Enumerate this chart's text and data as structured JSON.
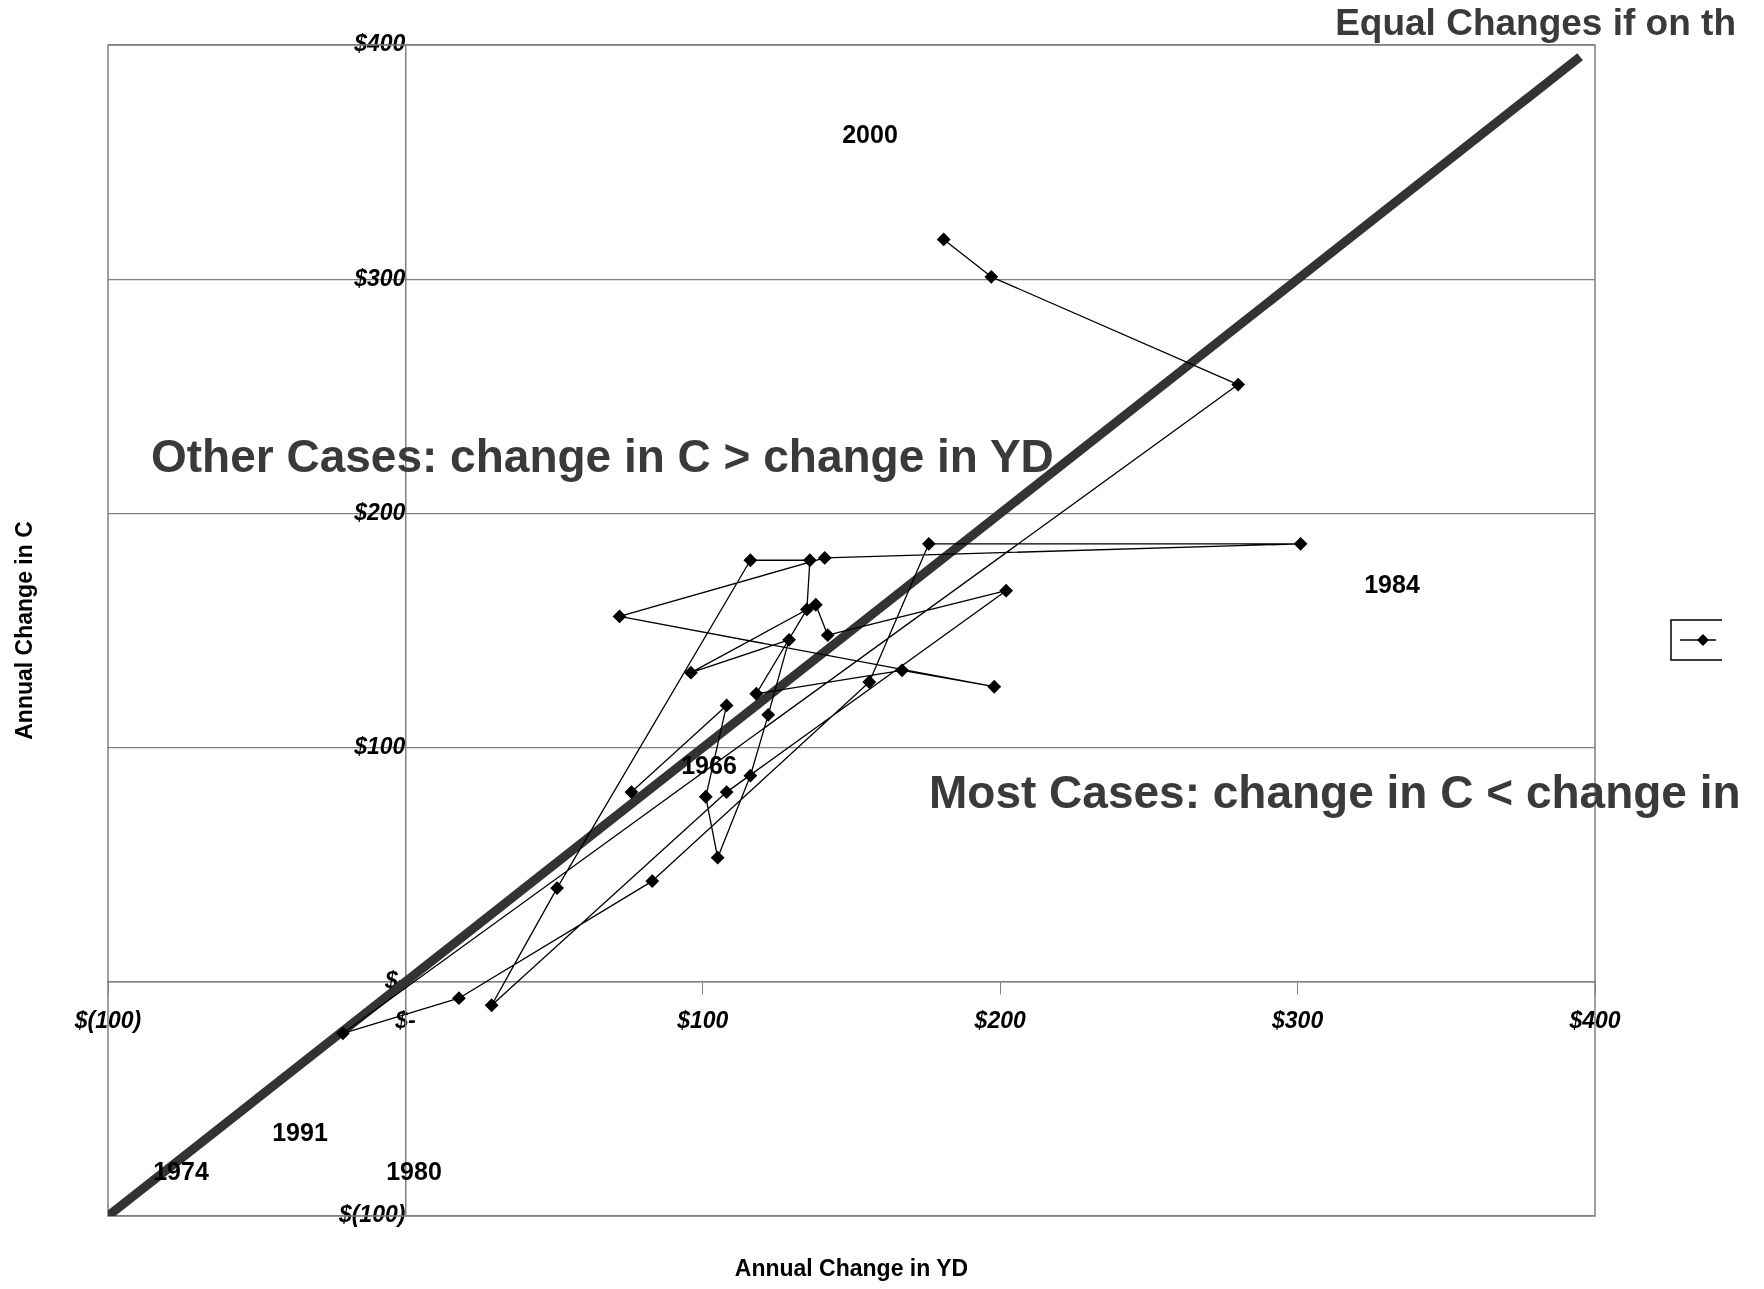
{
  "chart_data": {
    "type": "line",
    "title": "Equal Changes if on th",
    "xlabel": "Annual Change in YD",
    "ylabel": "Annual Change in C",
    "xlim": [
      -100,
      400
    ],
    "ylim": [
      -100,
      400
    ],
    "xticks": [
      {
        "value": -100,
        "label": "$(100)"
      },
      {
        "value": 0,
        "label": "$-"
      },
      {
        "value": 100,
        "label": "$100"
      },
      {
        "value": 200,
        "label": "$200"
      },
      {
        "value": 300,
        "label": "$300"
      },
      {
        "value": 400,
        "label": "$400"
      }
    ],
    "yticks": [
      {
        "value": -100,
        "label": "$(100)"
      },
      {
        "value": 0,
        "label": "$-"
      },
      {
        "value": 100,
        "label": "$100"
      },
      {
        "value": 200,
        "label": "$200"
      },
      {
        "value": 300,
        "label": "$300"
      },
      {
        "value": 400,
        "label": "$400"
      }
    ],
    "grid": "y",
    "marker": "diamond",
    "line_style": "solid",
    "series": [
      {
        "color": "#000000",
        "x": [
          76,
          108,
          101,
          105,
          116,
          122,
          129,
          96,
          138,
          142,
          202,
          108,
          29,
          51,
          116,
          136,
          135,
          118,
          167,
          198,
          72,
          141,
          301,
          176,
          156,
          83,
          18,
          -21,
          280,
          197,
          181
        ],
        "values": [
          81,
          118,
          79,
          53,
          88,
          114,
          146,
          132,
          161,
          148,
          167,
          81,
          -10,
          40,
          180,
          180,
          159,
          123,
          133,
          126,
          156,
          181,
          187,
          187,
          128,
          43,
          -7,
          -22,
          255,
          301,
          317
        ]
      },
      {
        "color": "#333333",
        "marker": "none",
        "x": [
          -100,
          395
        ],
        "values": [
          -100,
          395
        ]
      }
    ],
    "annotations": [
      "Other Cases: change in C > change in YD",
      "Most Cases: change in C < change in",
      "2000",
      "1984",
      "1966",
      "1991",
      "1974",
      "1980"
    ]
  }
}
